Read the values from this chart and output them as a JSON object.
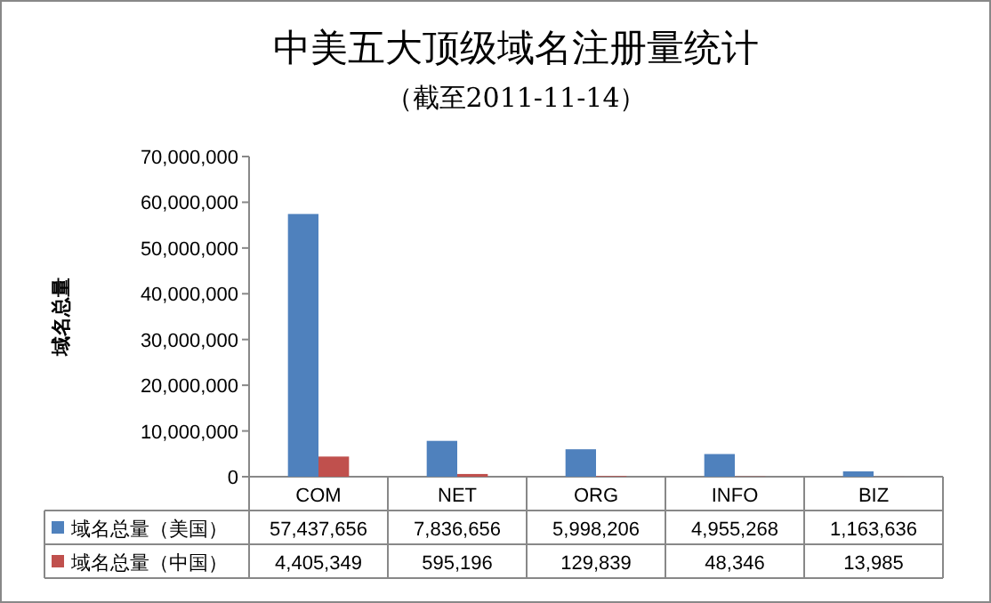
{
  "chart_data": {
    "type": "bar",
    "title": "中美五大顶级域名注册量统计",
    "subtitle": "（截至2011-11-14）",
    "ylabel": "域名总量",
    "categories": [
      "COM",
      "NET",
      "ORG",
      "INFO",
      "BIZ"
    ],
    "series": [
      {
        "name": "域名总量（美国）",
        "color": "#4f81bd",
        "values": [
          57437656,
          7836656,
          5998206,
          4955268,
          1163636
        ],
        "value_labels": [
          "57,437,656",
          "7,836,656",
          "5,998,206",
          "4,955,268",
          "1,163,636"
        ]
      },
      {
        "name": "域名总量（中国）",
        "color": "#c0504d",
        "values": [
          4405349,
          595196,
          129839,
          48346,
          13985
        ],
        "value_labels": [
          "4,405,349",
          "595,196",
          "129,839",
          "48,346",
          "13,985"
        ]
      }
    ],
    "ylim": [
      0,
      70000000
    ],
    "yticks": [
      {
        "value": 0,
        "label": "0"
      },
      {
        "value": 10000000,
        "label": "10,000,000"
      },
      {
        "value": 20000000,
        "label": "20,000,000"
      },
      {
        "value": 30000000,
        "label": "30,000,000"
      },
      {
        "value": 40000000,
        "label": "40,000,000"
      },
      {
        "value": 50000000,
        "label": "50,000,000"
      },
      {
        "value": 60000000,
        "label": "60,000,000"
      },
      {
        "value": 70000000,
        "label": "70,000,000"
      }
    ],
    "legend": "bottom"
  }
}
